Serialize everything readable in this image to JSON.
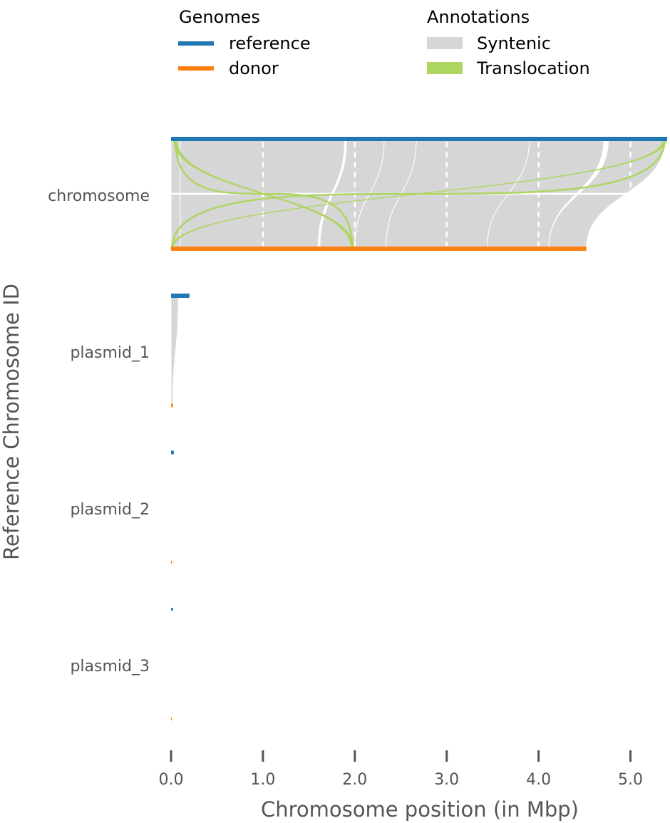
{
  "chart_data": {
    "type": "synteny",
    "xlabel": "Chromosome position (in Mbp)",
    "ylabel": "Reference Chromosome ID",
    "x_ticks": [
      "0.0",
      "1.0",
      "2.0",
      "3.0",
      "4.0",
      "5.0"
    ],
    "xlim": [
      0,
      5.4
    ],
    "legend": {
      "genomes_title": "Genomes",
      "genomes": [
        {
          "name": "reference",
          "color": "#1f77b4"
        },
        {
          "name": "donor",
          "color": "#ff7f0e"
        }
      ],
      "annotations_title": "Annotations",
      "annotations": [
        {
          "name": "Syntenic",
          "color": "#d6d6d6"
        },
        {
          "name": "Translocation",
          "color": "#add562"
        }
      ]
    },
    "chromosomes": [
      {
        "id": "chromosome",
        "reference_length": 5.4,
        "donor_length": 4.52
      },
      {
        "id": "plasmid_1",
        "reference_length": 0.2,
        "donor_length": 0.02
      },
      {
        "id": "plasmid_2",
        "reference_length": 0.03,
        "donor_length": 0.01
      },
      {
        "id": "plasmid_3",
        "reference_length": 0.02,
        "donor_length": 0.01
      }
    ],
    "syntenic_blocks": [
      {
        "chrom": "chromosome",
        "ref": [
          0.0,
          0.1
        ],
        "donor": [
          0.0,
          0.1
        ]
      },
      {
        "chrom": "chromosome",
        "ref": [
          0.1,
          1.89
        ],
        "donor": [
          0.1,
          1.6
        ]
      },
      {
        "chrom": "chromosome",
        "ref": [
          1.91,
          2.32
        ],
        "donor": [
          1.62,
          2.0
        ]
      },
      {
        "chrom": "chromosome",
        "ref": [
          2.32,
          2.67
        ],
        "donor": [
          2.0,
          2.34
        ]
      },
      {
        "chrom": "chromosome",
        "ref": [
          2.67,
          3.9
        ],
        "donor": [
          2.34,
          3.44
        ]
      },
      {
        "chrom": "chromosome",
        "ref": [
          3.9,
          4.71
        ],
        "donor": [
          3.44,
          4.11
        ]
      },
      {
        "chrom": "chromosome",
        "ref": [
          4.76,
          5.38
        ],
        "donor": [
          4.11,
          4.52
        ]
      },
      {
        "chrom": "plasmid_1",
        "ref": [
          0.0,
          0.08
        ],
        "donor": [
          0.0,
          0.02
        ]
      }
    ],
    "translocations": [
      {
        "chrom": "chromosome",
        "ref": [
          0.03,
          0.06
        ],
        "donor": [
          1.96,
          1.99
        ]
      },
      {
        "chrom": "chromosome",
        "ref": [
          5.36,
          5.39
        ],
        "donor": [
          0.0,
          0.02
        ]
      }
    ]
  }
}
